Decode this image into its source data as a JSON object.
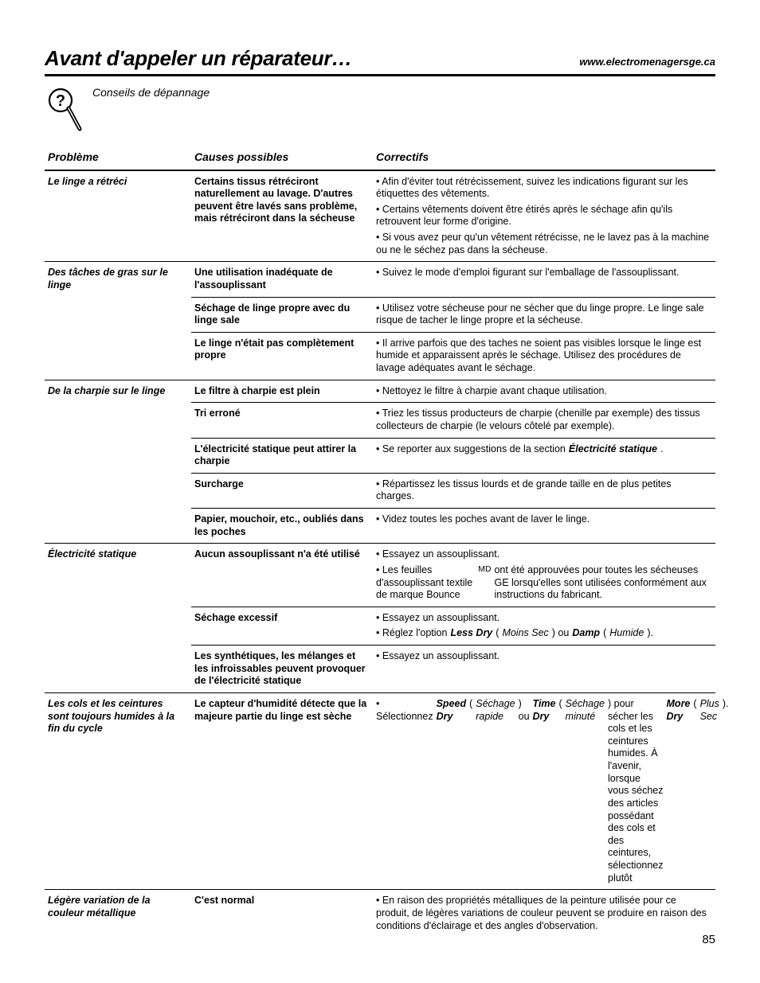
{
  "header": {
    "title": "Avant d'appeler un réparateur…",
    "url": "www.electromenagersge.ca",
    "subtitle": "Conseils de dépannage"
  },
  "columns": {
    "problem": "Problème",
    "cause": "Causes possibles",
    "fix": "Correctifs"
  },
  "rows": [
    {
      "problem": "Le linge a rétréci",
      "causes": [
        {
          "text": "Certains tissus rétréciront naturellement au lavage. D'autres peuvent être lavés sans problème, mais rétréciront dans la sécheuse",
          "fixes": [
            "• Afin d'éviter tout rétrécissement, suivez les indications figurant sur les étiquettes des vêtements.",
            "• Certains vêtements doivent être étirés après le séchage afin qu'ils retrouvent leur forme d'origine.",
            "• Si vous avez peur qu'un vêtement rétrécisse, ne le lavez pas à la machine ou ne le séchez pas dans la sécheuse."
          ]
        }
      ]
    },
    {
      "problem": "Des tâches de gras sur le linge",
      "causes": [
        {
          "text": "Une utilisation inadéquate de l'assouplissant",
          "fixes": [
            "• Suivez le mode d'emploi figurant sur l'emballage de l'assouplissant."
          ]
        },
        {
          "text": "Séchage de linge propre avec du linge sale",
          "fixes": [
            "• Utilisez votre sécheuse pour ne sécher que du linge propre. Le linge sale risque de tacher le linge propre et la sécheuse."
          ]
        },
        {
          "text": "Le linge n'était pas complètement propre",
          "fixes": [
            "• Il arrive parfois que des taches ne soient pas visibles lorsque le linge est humide et apparaissent après le séchage. Utilisez des procédures de lavage adéquates avant le séchage."
          ]
        }
      ]
    },
    {
      "problem": "De la charpie sur le linge",
      "causes": [
        {
          "text": "Le filtre à charpie est plein",
          "fixes": [
            "• Nettoyez le filtre à charpie avant chaque utilisation."
          ]
        },
        {
          "text": "Tri erroné",
          "fixes": [
            "• Triez les tissus producteurs de charpie (chenille par exemple) des tissus collecteurs de charpie (le velours côtelé par exemple)."
          ]
        },
        {
          "text": "L'électricité statique peut attirer la charpie",
          "fixes": [
            "• Se reporter aux suggestions de la section <b><i>Électricité statique</i></b>."
          ],
          "html": true
        },
        {
          "text": "Surcharge",
          "fixes": [
            "• Répartissez les tissus lourds et de grande taille en de plus petites charges."
          ]
        },
        {
          "text": "Papier, mouchoir, etc., oubliés dans les poches",
          "fixes": [
            "• Videz toutes les poches avant de laver le linge."
          ]
        }
      ]
    },
    {
      "problem": "Électricité statique",
      "causes": [
        {
          "text": "Aucun assouplissant n'a été utilisé",
          "fixes": [
            "• Essayez un assouplissant.",
            "• Les feuilles d'assouplissant textile de marque Bounce<sup>MD</sup> ont été approuvées pour toutes les sécheuses GE lorsqu'elles sont utilisées conformément aux instructions du fabricant."
          ],
          "html": true
        },
        {
          "text": "Séchage excessif",
          "fixes": [
            "• Essayez un assouplissant.",
            "• Réglez l'option <b><i>Less Dry</i></b> (<i>Moins Sec</i>) ou <b><i>Damp</i></b> (<i>Humide</i>)."
          ],
          "html": true
        },
        {
          "text": "Les synthétiques, les mélanges et les infroissables peuvent provoquer de l'électricité statique",
          "fixes": [
            "• Essayez un assouplissant."
          ]
        }
      ]
    },
    {
      "problem": "Les cols et les ceintures sont toujours humides à la fin du cycle",
      "causes": [
        {
          "text": "Le capteur d'humidité détecte que la majeure partie du linge est sèche",
          "fixes": [
            "• Sélectionnez <b><i>Speed Dry</i></b> (<i>Séchage rapide</i>) ou <b><i>Time Dry</i></b> (<i>Séchage minuté</i>) pour sécher les cols et les ceintures humides. À l'avenir, lorsque vous séchez des articles possédant des cols et des ceintures, sélectionnez plutôt <b><i>More Dry</i></b> (<i>Plus Sec</i>)."
          ],
          "html": true
        }
      ]
    },
    {
      "problem": "Légère variation de la couleur métallique",
      "causes": [
        {
          "text": "C'est normal",
          "fixes": [
            "• En raison des propriétés métalliques de la peinture utilisée pour ce produit, de légères variations de couleur peuvent se produire en raison des conditions d'éclairage et des angles d'observation."
          ]
        }
      ]
    }
  ],
  "pagenum": "85"
}
